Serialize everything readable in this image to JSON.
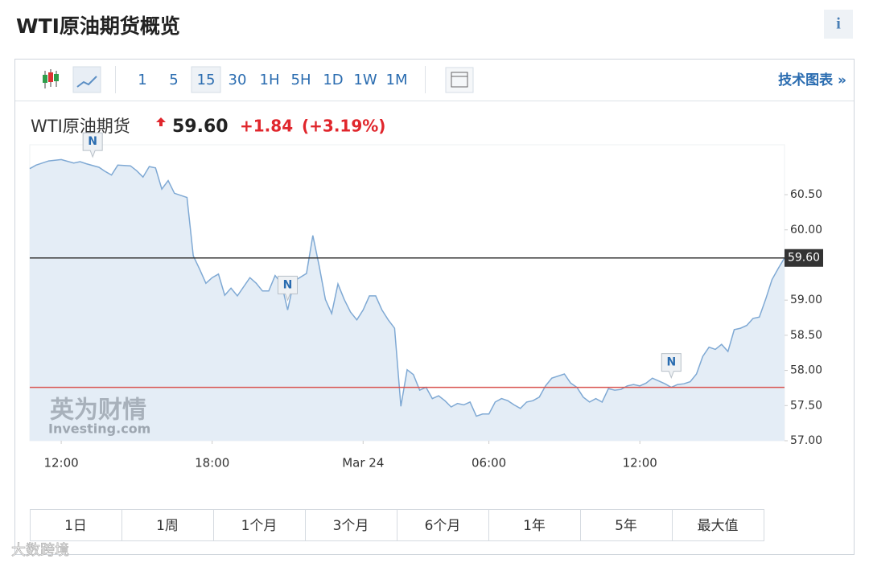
{
  "header": {
    "title": "WTI原油期货概览",
    "info": "i"
  },
  "toolbar": {
    "intervals": [
      "1",
      "5",
      "15",
      "30",
      "1H",
      "5H",
      "1D",
      "1W",
      "1M"
    ],
    "selected_interval": "15",
    "link": "技术图表 »"
  },
  "quote": {
    "name": "WTI原油期货",
    "price": "59.60",
    "change": "+1.84",
    "change_pct": "(+3.19%)"
  },
  "chart_data": {
    "type": "area",
    "x": [
      0,
      1,
      3,
      5,
      7,
      8,
      9,
      11,
      12,
      13,
      14,
      16,
      17,
      18,
      19,
      20,
      21,
      22,
      23,
      25,
      26,
      27,
      28,
      29,
      30,
      31,
      32,
      33,
      35,
      36,
      37,
      38,
      39,
      40,
      41,
      42,
      44,
      45,
      46,
      47,
      48,
      49,
      50,
      51,
      52,
      53,
      54,
      55,
      56,
      57,
      58,
      59,
      60,
      61,
      62,
      63,
      64,
      65,
      66,
      67,
      68,
      69,
      70,
      71,
      72,
      73,
      74,
      75,
      76,
      77,
      78,
      79,
      80,
      81,
      82,
      83,
      85,
      86,
      87,
      88,
      89,
      90,
      91,
      92,
      93,
      94,
      95,
      96,
      97,
      98,
      99,
      100,
      101,
      102,
      103,
      104,
      105,
      106,
      107,
      108,
      109,
      110,
      111,
      112,
      113,
      114,
      115,
      116,
      117,
      118,
      119,
      120
    ],
    "series": [
      {
        "color": "#7fa9d4",
        "fill": "#e4edf6",
        "values": [
          60.87,
          60.92,
          60.98,
          61.0,
          60.95,
          60.97,
          60.94,
          60.89,
          60.83,
          60.78,
          60.92,
          60.91,
          60.84,
          60.75,
          60.9,
          60.88,
          60.58,
          60.7,
          60.52,
          60.46,
          59.63,
          59.44,
          59.24,
          59.32,
          59.37,
          59.07,
          59.17,
          59.06,
          59.32,
          59.24,
          59.13,
          59.13,
          59.35,
          59.24,
          58.86,
          59.27,
          59.38,
          59.92,
          59.49,
          59.01,
          58.81,
          59.23,
          59.01,
          58.83,
          58.72,
          58.86,
          59.06,
          59.06,
          58.86,
          58.72,
          58.6,
          57.49,
          58.01,
          57.94,
          57.72,
          57.76,
          57.6,
          57.64,
          57.57,
          57.48,
          57.53,
          57.51,
          57.55,
          57.35,
          57.38,
          57.38,
          57.55,
          57.6,
          57.57,
          57.51,
          57.46,
          57.55,
          57.57,
          57.62,
          57.78,
          57.89,
          57.95,
          57.82,
          57.76,
          57.62,
          57.55,
          57.6,
          57.55,
          57.74,
          57.72,
          57.73,
          57.78,
          57.8,
          57.78,
          57.82,
          57.89,
          57.85,
          57.81,
          57.76,
          57.8,
          57.81,
          57.84,
          57.95,
          58.2,
          58.33,
          58.3,
          58.37,
          58.27,
          58.58,
          58.6,
          58.64,
          58.74,
          58.76,
          59.01,
          59.29,
          59.45,
          59.6
        ]
      }
    ],
    "xlim": [
      0,
      120
    ],
    "xticks": [
      {
        "value": 5,
        "label": "12:00"
      },
      {
        "value": 29,
        "label": "18:00"
      },
      {
        "value": 53,
        "label": "Mar 24"
      },
      {
        "value": 73,
        "label": "06:00"
      },
      {
        "value": 97,
        "label": "12:00"
      }
    ],
    "ylim": [
      57,
      61.21
    ],
    "yticks": [
      {
        "value": 57,
        "label": "57.00"
      },
      {
        "value": 57.5,
        "label": "57.50"
      },
      {
        "value": 58,
        "label": "58.00"
      },
      {
        "value": 58.5,
        "label": "58.50"
      },
      {
        "value": 59,
        "label": "59.00"
      },
      {
        "value": 60,
        "label": "60.00"
      },
      {
        "value": 60.5,
        "label": "60.50"
      }
    ],
    "reference_lines": [
      {
        "value": 59.6,
        "label": "59.60",
        "color": "#333333"
      },
      {
        "value": 57.76,
        "color": "#d9534f"
      }
    ],
    "annotations": [
      {
        "x": 10,
        "y": 60.9,
        "text": "N"
      },
      {
        "x": 41,
        "y": 58.86,
        "text": "N"
      },
      {
        "x": 102,
        "y": 57.76,
        "text": "N"
      }
    ],
    "watermark": {
      "cn": "英为财情",
      "en": "Investing.com"
    }
  },
  "ranges": [
    "1日",
    "1周",
    "1个月",
    "3个月",
    "6个月",
    "1年",
    "5年",
    "最大值"
  ],
  "footer_watermark": "大数跨境"
}
